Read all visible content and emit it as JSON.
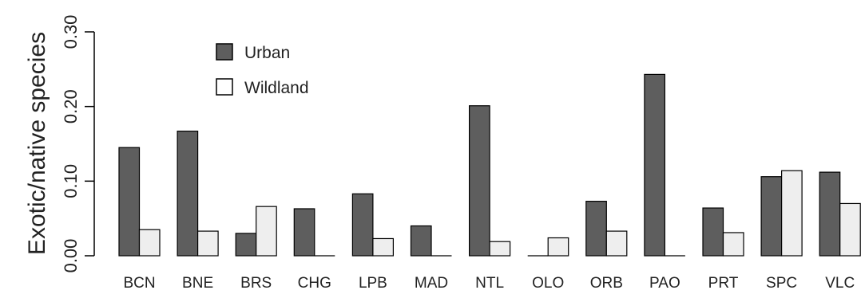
{
  "chart_data": {
    "type": "bar",
    "title": "",
    "xlabel": "",
    "ylabel": "Exotic/native species",
    "ylim": [
      0,
      0.3
    ],
    "yticks": [
      "0.00",
      "0.10",
      "0.20",
      "0.30"
    ],
    "ytick_values": [
      0,
      0.1,
      0.2,
      0.3
    ],
    "grid": false,
    "legend": "top-left",
    "categories": [
      "BCN",
      "BNE",
      "BRS",
      "CHG",
      "LPB",
      "MAD",
      "NTL",
      "OLO",
      "ORB",
      "PAO",
      "PRT",
      "SPC",
      "VLC"
    ],
    "series": [
      {
        "name": "Urban",
        "color": "#5e5e5e",
        "values": [
          0.145,
          0.167,
          0.03,
          0.063,
          0.083,
          0.04,
          0.201,
          0.0,
          0.073,
          0.243,
          0.064,
          0.106,
          0.112
        ]
      },
      {
        "name": "Wildland",
        "color": "#eeeeee",
        "values": [
          0.035,
          0.033,
          0.066,
          0.0,
          0.023,
          0.0,
          0.019,
          0.024,
          0.033,
          0.0,
          0.031,
          0.114,
          0.07
        ]
      }
    ]
  }
}
